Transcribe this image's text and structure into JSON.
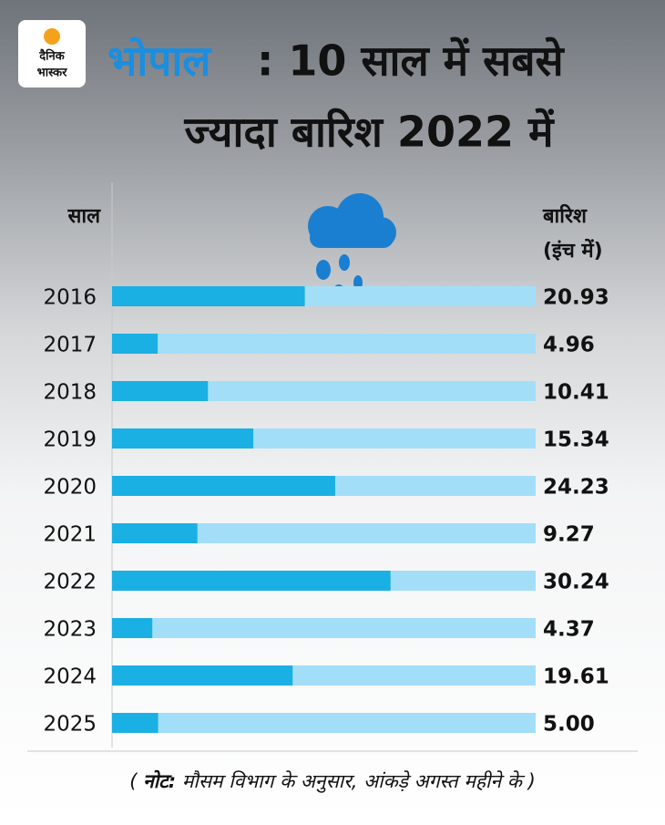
{
  "chart_data": {
    "type": "bar",
    "logo": [
      "दैनिक",
      "भास्कर"
    ],
    "title_highlight": "भोपाल",
    "title": [
      ": 10 साल में सबसे",
      "ज्यादा बारिश 2022 में"
    ],
    "category_header": "साल",
    "value_header": [
      "बारिश",
      "(इंच में)"
    ],
    "categories": [
      "2016",
      "2017",
      "2018",
      "2019",
      "2020",
      "2021",
      "2022",
      "2023",
      "2024",
      "2025"
    ],
    "values": [
      20.93,
      4.96,
      10.41,
      15.34,
      24.23,
      9.27,
      30.24,
      4.37,
      19.61,
      5.0
    ],
    "value_labels": [
      "20.93",
      "4.96",
      "10.41",
      "15.34",
      "24.23",
      "9.27",
      "30.24",
      "4.37",
      "19.61",
      "5.00"
    ],
    "xlim": [
      0,
      46
    ],
    "color": "#1ab0e4",
    "track_color": "#a3def8",
    "note_label": "नोट:",
    "note": "मौसम विभाग के अनुसार, आंकड़े अगस्त महीने के"
  }
}
